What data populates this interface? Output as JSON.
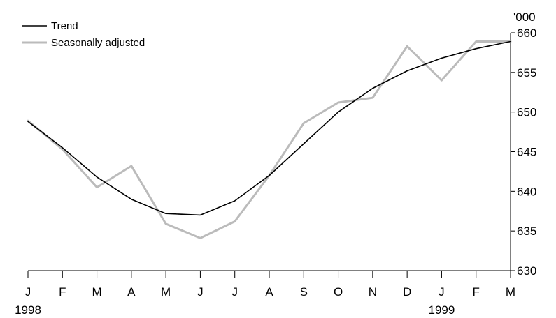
{
  "chart_data": {
    "type": "line",
    "categories": [
      "J",
      "F",
      "M",
      "A",
      "M",
      "J",
      "J",
      "A",
      "S",
      "O",
      "N",
      "D",
      "J",
      "F",
      "M"
    ],
    "year_labels": [
      {
        "label": "1998",
        "index": 0
      },
      {
        "label": "1999",
        "index": 12
      }
    ],
    "unit_label": "'000",
    "ylim": [
      630,
      660
    ],
    "yticks": [
      630,
      635,
      640,
      645,
      650,
      655,
      660
    ],
    "legend": {
      "position": "top-left"
    },
    "series": [
      {
        "name": "Trend",
        "color": "#000000",
        "values": [
          648.8,
          645.5,
          641.8,
          639.0,
          637.2,
          637.0,
          638.8,
          642.0,
          646.0,
          650.0,
          653.0,
          655.2,
          656.8,
          658.0,
          658.9
        ]
      },
      {
        "name": "Seasonally adjusted",
        "color": "#bbbbbb",
        "values": [
          648.9,
          645.3,
          640.5,
          643.2,
          635.9,
          634.1,
          636.2,
          642.0,
          648.6,
          651.2,
          651.8,
          658.3,
          654.0,
          658.9,
          658.9
        ]
      }
    ]
  }
}
